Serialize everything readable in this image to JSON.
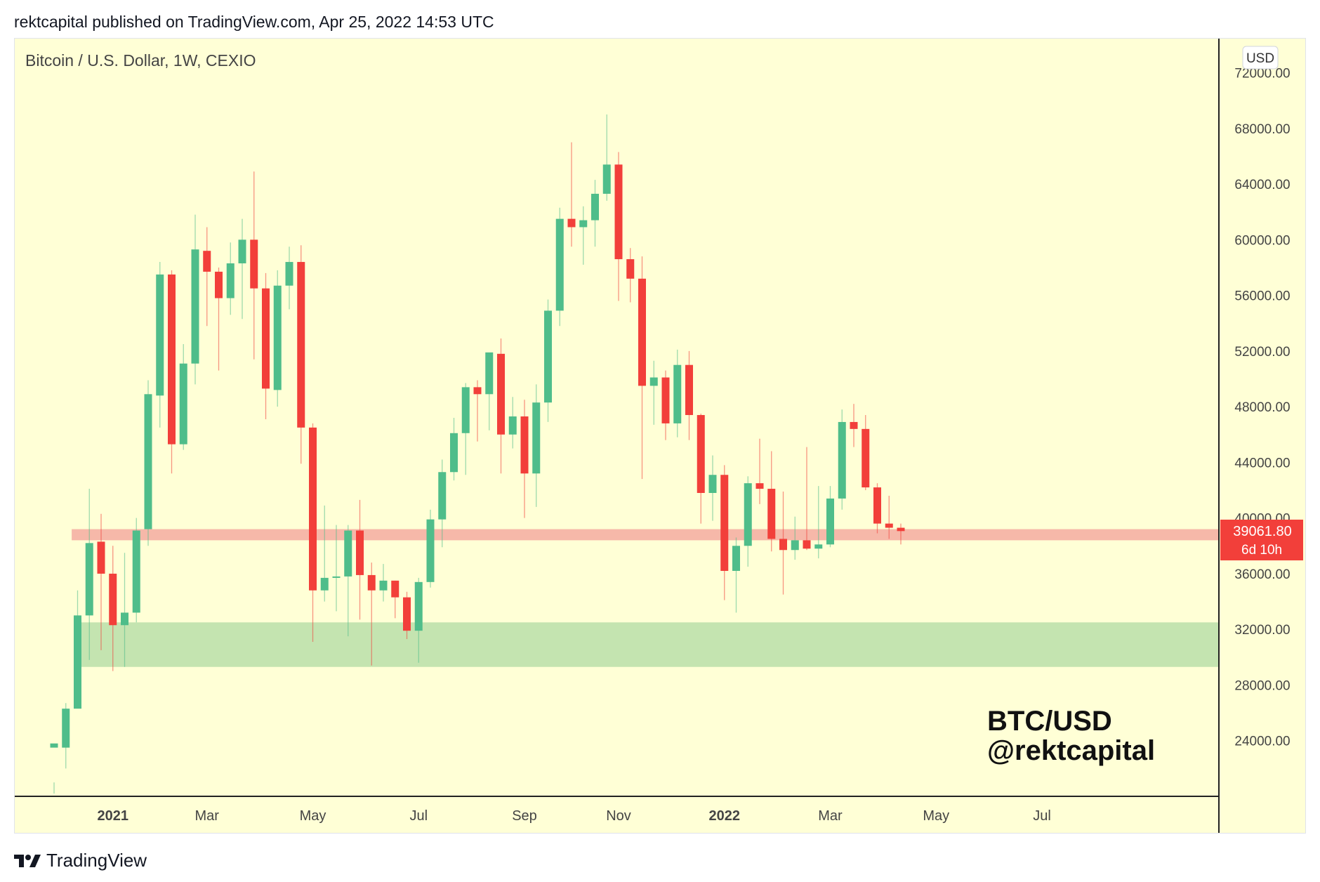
{
  "header": {
    "published": "rektcapital published on TradingView.com, Apr 25, 2022 14:53 UTC"
  },
  "footer": {
    "brand": "TradingView"
  },
  "colors": {
    "plot_bg": "#ffffd6",
    "up": "#4fbd8a",
    "down": "#f23f3a",
    "resistance": "#f6b8a9",
    "support": "#c4e4b0",
    "axis_text": "#444444"
  },
  "chart_data": {
    "type": "candlestick",
    "symbol_label": "Bitcoin / U.S. Dollar, 1W, CEXIO",
    "currency_button": "USD",
    "watermark_line1": "BTC/USD",
    "watermark_line2": "@rektcapital",
    "y_ticks": [
      "24000.00",
      "28000.00",
      "32000.00",
      "36000.00",
      "40000.00",
      "44000.00",
      "48000.00",
      "52000.00",
      "56000.00",
      "60000.00",
      "64000.00",
      "68000.00",
      "72000.00"
    ],
    "ylim": [
      20000,
      74500
    ],
    "x_ticks": [
      {
        "label": "2021",
        "bold": true,
        "week": 5
      },
      {
        "label": "Mar",
        "bold": false,
        "week": 13
      },
      {
        "label": "May",
        "bold": false,
        "week": 22
      },
      {
        "label": "Jul",
        "bold": false,
        "week": 31
      },
      {
        "label": "Sep",
        "bold": false,
        "week": 40
      },
      {
        "label": "Nov",
        "bold": false,
        "week": 48
      },
      {
        "label": "2022",
        "bold": true,
        "week": 57
      },
      {
        "label": "Mar",
        "bold": false,
        "week": 66
      },
      {
        "label": "May",
        "bold": false,
        "week": 75
      },
      {
        "label": "Jul",
        "bold": false,
        "week": 84
      }
    ],
    "last_price": "39061.80",
    "countdown": "6d 10h",
    "zones": [
      {
        "name": "resistance-zone",
        "from": 38400,
        "to": 39200,
        "start_week": 1.5
      },
      {
        "name": "support-zone",
        "from": 29300,
        "to": 32500,
        "start_week": 1.9
      }
    ],
    "candles": [
      [
        23500,
        23800,
        21000,
        20200
      ],
      [
        23500,
        26300,
        26700,
        22000
      ],
      [
        26300,
        33000,
        34800,
        27500
      ],
      [
        33000,
        38200,
        42100,
        29800
      ],
      [
        38300,
        36000,
        40300,
        30500
      ],
      [
        36000,
        32300,
        38000,
        29000
      ],
      [
        32300,
        33200,
        37500,
        29300
      ],
      [
        33200,
        39100,
        40000,
        32500
      ],
      [
        39200,
        48900,
        49900,
        38000
      ],
      [
        48800,
        57500,
        58400,
        46500
      ],
      [
        57500,
        45300,
        57800,
        43200
      ],
      [
        45300,
        51100,
        52500,
        44900
      ],
      [
        51100,
        59300,
        61800,
        49600
      ],
      [
        59200,
        57700,
        60900,
        53800
      ],
      [
        57700,
        55800,
        58000,
        50600
      ],
      [
        55800,
        58300,
        59800,
        54600
      ],
      [
        58300,
        60000,
        61500,
        54300
      ],
      [
        60000,
        56500,
        64900,
        51400
      ],
      [
        56500,
        49300,
        57600,
        47100
      ],
      [
        49200,
        56700,
        57800,
        48000
      ],
      [
        56700,
        58400,
        59500,
        55000
      ],
      [
        58400,
        46500,
        59600,
        43900
      ],
      [
        46500,
        34800,
        46800,
        31100
      ],
      [
        34800,
        35700,
        40900,
        34000
      ],
      [
        35700,
        35800,
        39500,
        33300
      ],
      [
        35800,
        39100,
        39500,
        31500
      ],
      [
        39100,
        35900,
        41300,
        32700
      ],
      [
        35900,
        34800,
        36800,
        29400
      ],
      [
        34800,
        35500,
        36700,
        34000
      ],
      [
        35500,
        34300,
        35500,
        32800
      ],
      [
        34300,
        31900,
        34700,
        31300
      ],
      [
        31900,
        35400,
        35700,
        29600
      ],
      [
        35400,
        39900,
        40600,
        35000
      ],
      [
        39900,
        43300,
        44200,
        37900
      ],
      [
        43300,
        46100,
        47200,
        42700
      ],
      [
        46100,
        49400,
        49700,
        43100
      ],
      [
        49400,
        48900,
        49900,
        45500
      ],
      [
        48900,
        51900,
        51800,
        46300
      ],
      [
        51800,
        46000,
        52900,
        43200
      ],
      [
        46000,
        47300,
        48700,
        45000
      ],
      [
        47300,
        43200,
        48500,
        40000
      ],
      [
        43200,
        48300,
        49600,
        40800
      ],
      [
        48300,
        54900,
        55700,
        46900
      ],
      [
        54900,
        61500,
        62300,
        53800
      ],
      [
        61500,
        60900,
        67000,
        59500
      ],
      [
        60900,
        61400,
        62400,
        58200
      ],
      [
        61400,
        63300,
        64300,
        59500
      ],
      [
        63300,
        65400,
        69000,
        62800
      ],
      [
        65400,
        58600,
        66300,
        55600
      ],
      [
        58600,
        57200,
        59400,
        55500
      ],
      [
        57200,
        49500,
        58800,
        42800
      ],
      [
        49500,
        50100,
        51300,
        46700
      ],
      [
        50100,
        46800,
        50600,
        45600
      ],
      [
        46800,
        51000,
        52100,
        45800
      ],
      [
        51000,
        47400,
        52000,
        45600
      ],
      [
        47400,
        41800,
        47500,
        39600
      ],
      [
        41800,
        43100,
        44500,
        39800
      ],
      [
        43100,
        36200,
        43800,
        34100
      ],
      [
        36200,
        38000,
        38600,
        33200
      ],
      [
        38000,
        42500,
        43000,
        36500
      ],
      [
        42500,
        42100,
        45700,
        41000
      ],
      [
        42100,
        38500,
        44800,
        37600
      ],
      [
        38500,
        37700,
        41900,
        34500
      ],
      [
        37700,
        38400,
        40100,
        37000
      ],
      [
        38400,
        37800,
        45100,
        37700
      ],
      [
        37800,
        38100,
        42300,
        37100
      ],
      [
        38100,
        41400,
        42300,
        37900
      ],
      [
        41400,
        46900,
        47800,
        40600
      ],
      [
        46900,
        46400,
        48200,
        45100
      ],
      [
        46400,
        42200,
        47400,
        42000
      ],
      [
        42200,
        39600,
        42500,
        38900
      ],
      [
        39600,
        39300,
        41600,
        38500
      ],
      [
        39300,
        39060,
        39600,
        38100
      ]
    ]
  }
}
